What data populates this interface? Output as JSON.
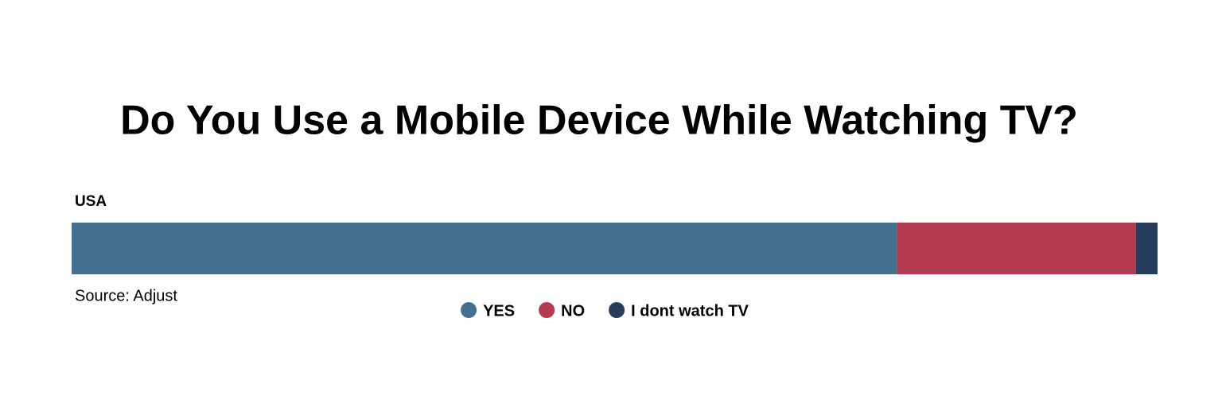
{
  "chart_data": {
    "type": "bar",
    "orientation": "horizontal",
    "stacked": true,
    "title": "Do You Use a Mobile Device While Watching TV?",
    "categories": [
      "USA"
    ],
    "series": [
      {
        "name": "YES",
        "color": "#44718f",
        "values": [
          76
        ]
      },
      {
        "name": "NO",
        "color": "#b43a52",
        "values": [
          22
        ]
      },
      {
        "name": "I dont watch TV",
        "color": "#253d5b",
        "values": [
          2
        ]
      }
    ],
    "source": "Source: Adjust"
  }
}
